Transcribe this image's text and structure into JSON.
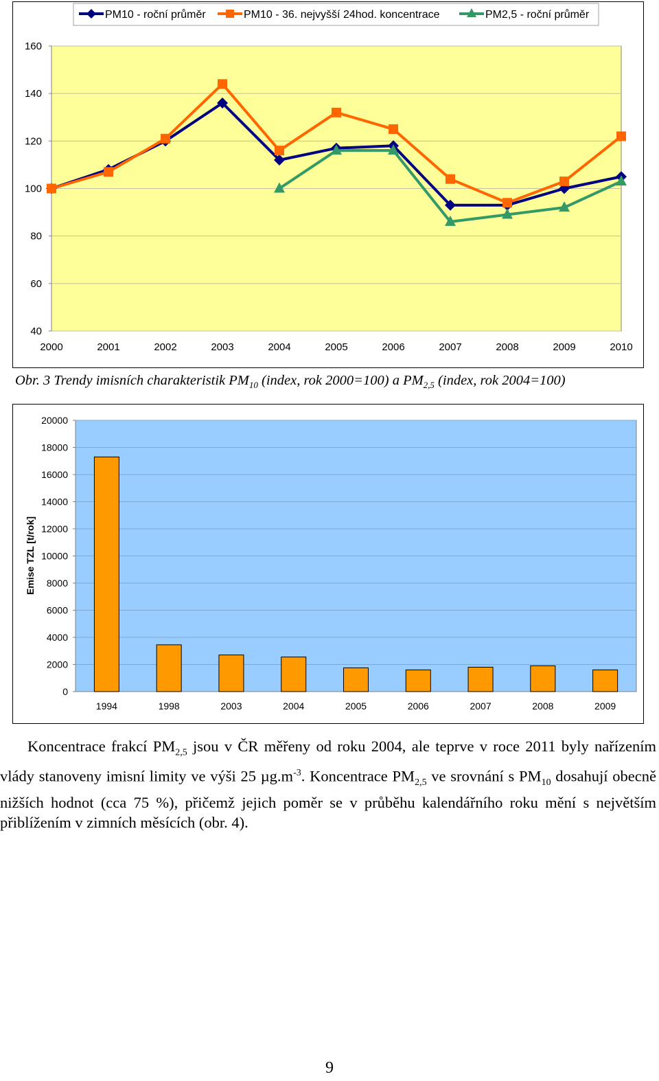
{
  "chart_data": [
    {
      "type": "line",
      "x": [
        2000,
        2001,
        2002,
        2003,
        2004,
        2005,
        2006,
        2007,
        2008,
        2009,
        2010
      ],
      "series": [
        {
          "name": "PM10 - roční průměr",
          "color": "#000080",
          "marker": "diamond",
          "values": [
            100,
            108,
            120,
            136,
            112,
            117,
            118,
            93,
            93,
            100,
            105
          ]
        },
        {
          "name": "PM10 - 36. nejvyšší 24hod. koncentrace",
          "color": "#ff6600",
          "marker": "square",
          "values": [
            100,
            107,
            121,
            144,
            116,
            132,
            125,
            104,
            94,
            103,
            122
          ]
        },
        {
          "name": "PM2,5 - roční průměr",
          "color": "#339966",
          "marker": "triangle",
          "values": [
            null,
            null,
            null,
            null,
            100,
            116,
            116,
            86,
            89,
            92,
            103
          ]
        }
      ],
      "ylim": [
        40,
        160
      ],
      "yticks": [
        40,
        60,
        80,
        100,
        120,
        140,
        160
      ],
      "plot_background": "#ffff99",
      "legend": "top"
    },
    {
      "type": "bar",
      "categories": [
        "1994",
        "1998",
        "2003",
        "2004",
        "2005",
        "2006",
        "2007",
        "2008",
        "2009"
      ],
      "values": [
        17300,
        3450,
        2700,
        2550,
        1750,
        1600,
        1800,
        1900,
        1600
      ],
      "ylabel": "Emise TZL [t/rok]",
      "ylim": [
        0,
        20000
      ],
      "yticks": [
        0,
        2000,
        4000,
        6000,
        8000,
        10000,
        12000,
        14000,
        16000,
        18000,
        20000
      ],
      "bar_color": "#ff9900",
      "plot_background": "#99ccff"
    }
  ],
  "caption": {
    "prefix": "Obr. 3 Trendy imisních charakteristik PM",
    "sub1": "10",
    "middle": " (index, rok 2000=100) a PM",
    "sub2": "2,5",
    "suffix": " (index, rok 2004=100)"
  },
  "paragraph": {
    "t1": "Koncentrace frakcí PM",
    "s1": "2,5",
    "t2": " jsou v ČR měřeny od roku 2004, ale teprve v roce 2011 byly nařízením vlády stanoveny imisní limity ve výši 25 µg.m",
    "sup1": "-3",
    "t3": ". Koncentrace PM",
    "s2": "2,5",
    "t4": " ve srovnání s PM",
    "s3": "10",
    "t5": " dosahují obecně nižších hodnot (cca 75 %), přičemž jejich poměr se v průběhu kalendářního roku mění s největším přiblížením v zimních měsících (obr. 4)."
  },
  "page_number": "9"
}
